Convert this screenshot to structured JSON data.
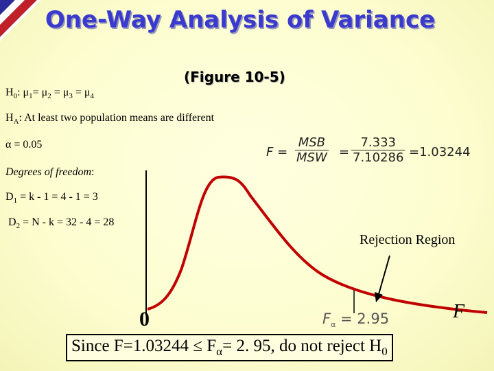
{
  "title": "One-Way Analysis of Variance",
  "subtitle": "(Figure 10-5)",
  "null_hypothesis": [
    "H",
    "0",
    ": μ",
    "1",
    "= μ",
    "2",
    " = μ",
    "3",
    " = μ",
    "4"
  ],
  "alt_hypothesis": [
    "H",
    "A",
    ": At least two population means are different"
  ],
  "alpha": "α = 0.05",
  "dof_heading": {
    "italic": "Degrees of freedom",
    "rest": ":"
  },
  "d1": [
    "D",
    "1",
    " = k - 1 = 4 - 1 = 3"
  ],
  "d2": [
    "D",
    "2",
    " = N - k = 32 - 4 = 28"
  ],
  "formula": {
    "lhs": "F =",
    "num1": "MSB",
    "den1": "MSW",
    "eq": "=",
    "num2": "7.333",
    "den2": "7.10286",
    "result": "=1.03244"
  },
  "rejection_label": "Rejection Region",
  "origin_label": "0",
  "axis_label": "F",
  "critical_label": [
    "F",
    "α",
    " = 2.95"
  ],
  "conclusion": [
    "Since F=1.03244 ≤ F",
    "α",
    "= 2. 95, do not reject H",
    "0"
  ]
}
